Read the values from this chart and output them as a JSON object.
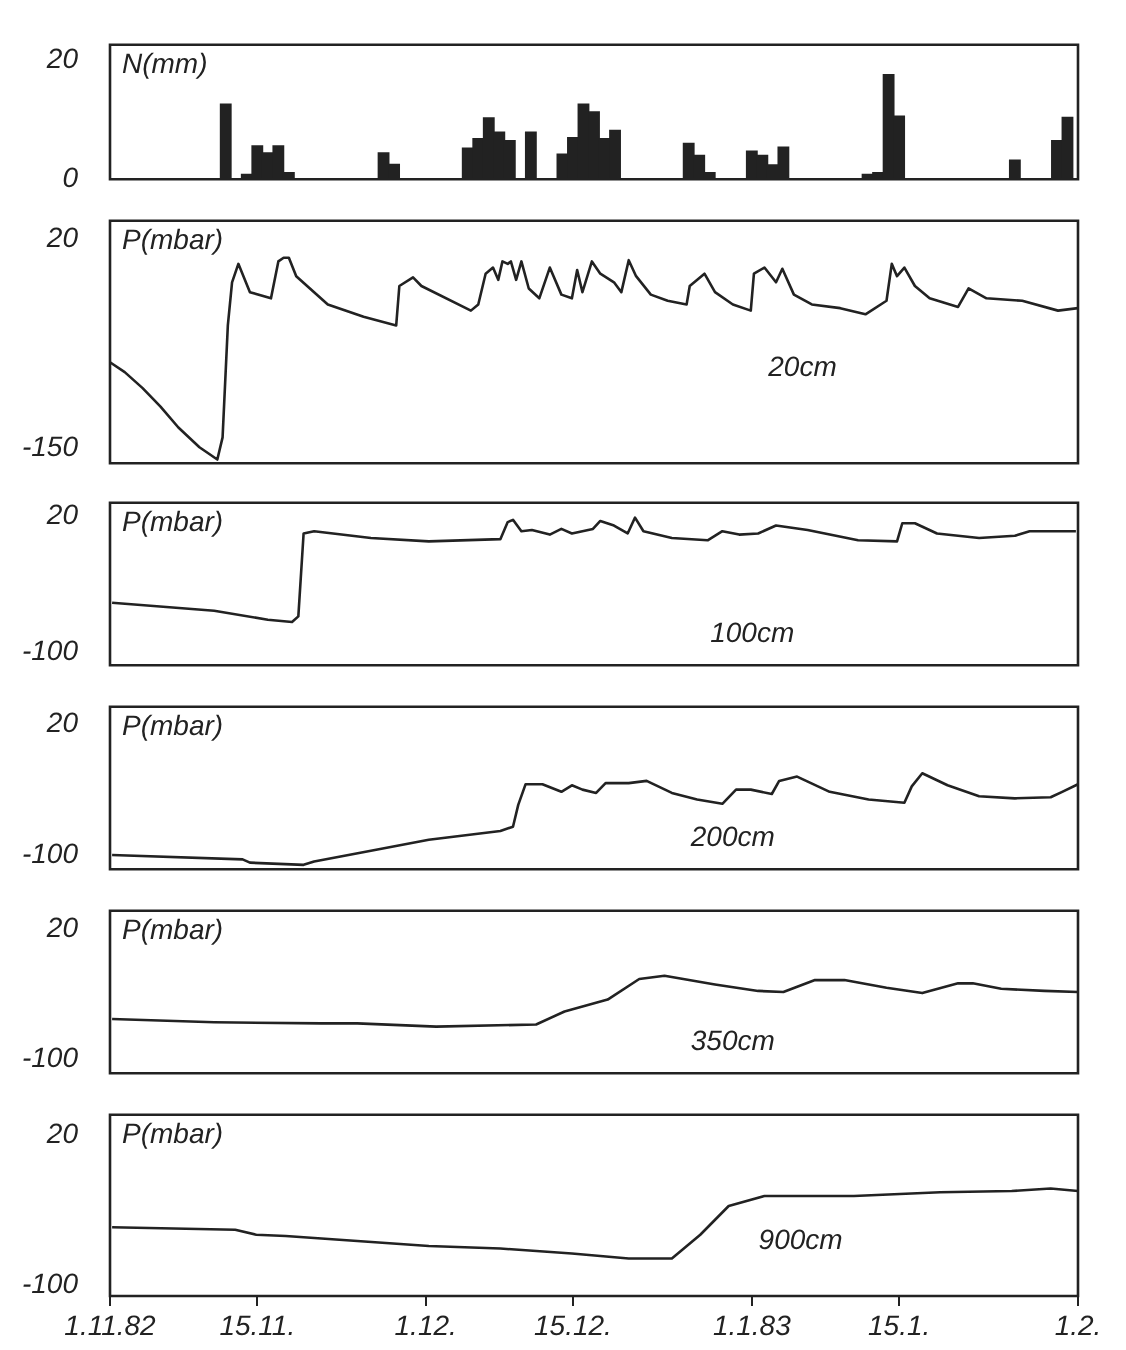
{
  "chart_data": [
    {
      "type": "bar",
      "ylabel": "N(mm)",
      "color": "#222222",
      "xlim": [
        "1982-11-01",
        "1983-02-01"
      ],
      "ylim": [
        0,
        22.6
      ],
      "yticks": [
        0,
        20
      ],
      "tick_labels": "y",
      "x": [
        "1982-11-12",
        "1982-11-14",
        "1982-11-15",
        "1982-11-16",
        "1982-11-17",
        "1982-11-18",
        "1982-11-27",
        "1982-11-28",
        "1982-12-05",
        "1982-12-06",
        "1982-12-07",
        "1982-12-08",
        "1982-12-09",
        "1982-12-11",
        "1982-12-14",
        "1982-12-15",
        "1982-12-16",
        "1982-12-17",
        "1982-12-18",
        "1982-12-19",
        "1982-12-26",
        "1982-12-27",
        "1982-12-28",
        "1983-01-01",
        "1983-01-02",
        "1983-01-03",
        "1983-01-04",
        "1983-01-12",
        "1983-01-13",
        "1983-01-14",
        "1983-01-15",
        "1983-01-26",
        "1983-01-30",
        "1983-01-31"
      ],
      "values": [
        12.6,
        0.8,
        5.6,
        4.4,
        5.6,
        1.1,
        4.4,
        2.5,
        5.2,
        6.8,
        10.3,
        7.9,
        6.5,
        7.9,
        4.2,
        7.0,
        12.6,
        11.3,
        6.8,
        8.2,
        6.0,
        4.0,
        1.1,
        4.7,
        4.0,
        2.4,
        5.4,
        0.8,
        1.1,
        17.6,
        10.6,
        3.2,
        6.5,
        10.4
      ]
    },
    {
      "type": "line",
      "ylabel": "P(mbar)",
      "xlim": [
        "1982-11-01",
        "1983-02-01"
      ],
      "ylim": [
        -162,
        35
      ],
      "yticks": [
        20,
        -150
      ],
      "tick_labels": "y",
      "x": [
        "1982-11-01",
        "1982-11-02T09:36",
        "1982-11-04T02:24",
        "1982-11-05T19:12",
        "1982-11-07T12:00",
        "1982-11-09T12:00",
        "1982-11-11T04:48",
        "1982-11-11T16:48",
        "1982-11-12T04:48",
        "1982-11-12T14:24",
        "1982-11-13T04:48",
        "1982-11-14T07:12",
        "1982-11-16T07:12",
        "1982-11-17",
        "1982-11-17T12:00",
        "1982-11-18",
        "1982-11-18T16:48",
        "1982-11-21T16:48",
        "1982-11-25T02:24",
        "1982-11-28T04:48",
        "1982-11-28T12:00",
        "1982-11-29T19:12",
        "1982-11-30T14:24",
        "1982-12-05T07:12",
        "1982-12-06",
        "1982-12-06T16:48",
        "1982-12-07T09:36",
        "1982-12-07T21:36",
        "1982-12-08T07:12",
        "1982-12-08T19:12",
        "1982-12-09T02:24",
        "1982-12-09T14:24",
        "1982-12-10T02:24",
        "1982-12-10T19:12",
        "1982-12-11T19:12",
        "1982-12-12T19:12",
        "1982-12-13T21:36",
        "1982-12-14T21:36",
        "1982-12-15T09:36",
        "1982-12-15T21:36",
        "1982-12-16T19:12",
        "1982-12-17T14:24",
        "1982-12-18T21:36",
        "1982-12-19T14:24",
        "1982-12-20T07:12",
        "1982-12-21",
        "1982-12-22T09:36",
        "1982-12-24",
        "1982-12-25T19:12",
        "1982-12-26T02:24",
        "1982-12-27T12:00",
        "1982-12-28T12:00",
        "1982-12-30T04:48",
        "1982-12-31T21:36",
        "1983-01-01T04:48",
        "1983-01-02T04:48",
        "1983-01-03T07:12",
        "1983-01-03T21:36",
        "1983-01-05",
        "1983-01-06T16:48",
        "1983-01-09T09:36",
        "1983-01-11T19:12",
        "1983-01-13T19:12",
        "1983-01-14T07:12",
        "1983-01-14T19:12",
        "1983-01-15T12:00",
        "1983-01-16T12:00",
        "1983-01-17T21:36",
        "1983-01-20T14:24",
        "1983-01-21T14:24",
        "1983-01-23T07:12",
        "1983-01-26T16:48",
        "1983-01-30T02:24",
        "1983-02-01"
      ],
      "series": [
        {
          "name": "20cm",
          "color": "#222222",
          "values": [
            -80,
            -88,
            -101,
            -116,
            -133,
            -149,
            -159,
            -141,
            -50,
            -15,
            0,
            -23,
            -28,
            2,
            5,
            5,
            -10,
            -33,
            -43,
            -50,
            -18,
            -11,
            -18,
            -38,
            -33,
            -8,
            -3,
            -13,
            2,
            0,
            2,
            -13,
            2,
            -20,
            -28,
            -3,
            -25,
            -28,
            -5,
            -23,
            2,
            -8,
            -15,
            -23,
            3,
            -10,
            -25,
            -30,
            -33,
            -18,
            -8,
            -23,
            -33,
            -38,
            -8,
            -3,
            -15,
            -4,
            -25,
            -33,
            -36,
            -41,
            -30,
            0,
            -10,
            -3,
            -18,
            -28,
            -35,
            -20,
            -28,
            -30,
            -38,
            -36
          ]
        }
      ]
    },
    {
      "type": "line",
      "ylabel": "P(mbar)",
      "xlim": [
        "1982-11-01",
        "1983-02-01"
      ],
      "ylim": [
        -111,
        32
      ],
      "yticks": [
        20,
        -100
      ],
      "tick_labels": "y",
      "x": [
        "1982-11-01T04:48",
        "1982-11-10T21:36",
        "1982-11-16",
        "1982-11-18T07:12",
        "1982-11-18T21:36",
        "1982-11-19T09:36",
        "1982-11-20T09:36",
        "1982-11-25T19:12",
        "1982-12-01T07:12",
        "1982-12-08T02:24",
        "1982-12-08T19:12",
        "1982-12-09T07:12",
        "1982-12-10T02:24",
        "1982-12-11T02:24",
        "1982-12-12T19:12",
        "1982-12-13T21:36",
        "1982-12-14T21:36",
        "1982-12-16T21:36",
        "1982-12-17T14:24",
        "1982-12-18T21:36",
        "1982-12-20T04:48",
        "1982-12-20T21:36",
        "1982-12-21T16:48",
        "1982-12-24T09:36",
        "1982-12-27T19:12",
        "1982-12-29T04:48",
        "1982-12-30T19:12",
        "1983-01-01T14:24",
        "1983-01-03T07:12",
        "1983-01-06T07:12",
        "1983-01-11T02:24",
        "1983-01-14T19:12",
        "1983-01-15T07:12",
        "1983-01-16T12:00",
        "1983-01-18T14:24",
        "1983-01-22T14:24",
        "1983-01-26",
        "1983-01-27T09:36",
        "1983-01-31T19:12"
      ],
      "series": [
        {
          "name": "100cm",
          "color": "#222222",
          "values": [
            -56,
            -63,
            -71,
            -73,
            -68,
            5,
            7,
            1,
            -2,
            0,
            15,
            17,
            7,
            8,
            4,
            9,
            5,
            9,
            16,
            12,
            5,
            19,
            7,
            1,
            -1,
            7,
            4,
            5,
            12,
            8,
            -1,
            -2,
            14,
            14,
            5,
            1,
            3,
            7,
            7
          ]
        }
      ]
    },
    {
      "type": "line",
      "ylabel": "P(mbar)",
      "xlim": [
        "1982-11-01",
        "1983-02-01"
      ],
      "ylim": [
        -113,
        36
      ],
      "yticks": [
        20,
        -100
      ],
      "tick_labels": "y",
      "x": [
        "1982-11-01T04:48",
        "1982-11-13T14:24",
        "1982-11-14T07:12",
        "1982-11-19T09:36",
        "1982-11-20T09:36",
        "1982-11-25T19:12",
        "1982-12-01T07:12",
        "1982-12-08T02:24",
        "1982-12-09T07:12",
        "1982-12-09T19:12",
        "1982-12-10T12:00",
        "1982-12-12T02:24",
        "1982-12-13T21:36",
        "1982-12-14T21:36",
        "1982-12-15T21:36",
        "1982-12-17T04:48",
        "1982-12-18T02:24",
        "1982-12-20T07:12",
        "1982-12-22",
        "1982-12-24T09:36",
        "1982-12-26T19:12",
        "1982-12-29T04:48",
        "1982-12-30T12:00",
        "1982-12-31T21:36",
        "1983-01-02T21:36",
        "1983-01-03T14:24",
        "1983-01-05T07:12",
        "1983-01-08T09:36",
        "1983-01-12T02:24",
        "1983-01-15T12:00",
        "1983-01-16T04:48",
        "1983-01-17T04:48",
        "1983-01-19T14:24",
        "1983-01-22T14:24",
        "1983-01-26",
        "1983-01-29T09:36",
        "1983-01-30T12:00",
        "1983-02-01"
      ],
      "series": [
        {
          "name": "200cm",
          "color": "#222222",
          "values": [
            -100,
            -104,
            -107,
            -109,
            -106,
            -96,
            -86,
            -78,
            -74,
            -54,
            -35,
            -35,
            -42,
            -36,
            -40,
            -43,
            -34,
            -34,
            -32,
            -43,
            -49,
            -53,
            -40,
            -40,
            -44,
            -32,
            -28,
            -42,
            -49,
            -52,
            -37,
            -25,
            -36,
            -46,
            -48,
            -47,
            -42,
            -35
          ]
        }
      ]
    },
    {
      "type": "line",
      "ylabel": "P(mbar)",
      "xlim": [
        "1982-11-01",
        "1983-02-01"
      ],
      "ylim": [
        -113,
        37
      ],
      "yticks": [
        20,
        -100
      ],
      "tick_labels": "y",
      "x": [
        "1982-11-01T04:48",
        "1982-11-10T21:36",
        "1982-11-21T02:24",
        "1982-11-24T12:00",
        "1982-12-02",
        "1982-12-11T12:00",
        "1982-12-14T04:48",
        "1982-12-18T07:12",
        "1982-12-21T07:12",
        "1982-12-23T16:48",
        "1982-12-28T12:00",
        "1983-01-01T14:24",
        "1983-01-04",
        "1983-01-07",
        "1983-01-09T19:12",
        "1983-01-13T19:12",
        "1983-01-17T04:48",
        "1983-01-20T14:24",
        "1983-01-22",
        "1983-01-24T16:48",
        "1983-01-28T19:12",
        "1983-02-01"
      ],
      "series": [
        {
          "name": "350cm",
          "color": "#222222",
          "values": [
            -63,
            -66,
            -67,
            -67,
            -70,
            -68,
            -56,
            -45,
            -26,
            -23,
            -31,
            -37,
            -38,
            -27,
            -27,
            -34,
            -39,
            -30,
            -30,
            -35,
            -37,
            -38
          ]
        }
      ]
    },
    {
      "type": "line",
      "ylabel": "P(mbar)",
      "xlim": [
        "1982-11-01",
        "1983-02-01"
      ],
      "ylim": [
        -109,
        36
      ],
      "yticks": [
        20,
        -100
      ],
      "xticks": [
        {
          "value": "1982-11-01",
          "label": "1.11.82"
        },
        {
          "value": "1982-11-15",
          "label": "15.11."
        },
        {
          "value": "1982-12-01",
          "label": "1.12."
        },
        {
          "value": "1982-12-15",
          "label": "15.12."
        },
        {
          "value": "1983-01-01",
          "label": "1.1.83"
        },
        {
          "value": "1983-01-15",
          "label": "15.1."
        },
        {
          "value": "1983-02-01",
          "label": "1.2."
        }
      ],
      "x": [
        "1982-11-01T04:48",
        "1982-11-12T21:36",
        "1982-11-14T21:36",
        "1982-11-17T16:48",
        "1982-11-24T12:00",
        "1982-12-01T07:12",
        "1982-12-08T02:24",
        "1982-12-14T21:36",
        "1982-12-20T07:12",
        "1982-12-24T09:36",
        "1982-12-27T02:24",
        "1982-12-29T19:12",
        "1983-01-02T04:48",
        "1983-01-10T16:48",
        "1983-01-18T21:36",
        "1983-01-25T16:48",
        "1983-01-29T09:36",
        "1983-02-01"
      ],
      "series": [
        {
          "name": "900cm",
          "color": "#222222",
          "values": [
            -54,
            -56,
            -60,
            -61,
            -65,
            -69,
            -71,
            -75,
            -79,
            -79,
            -60,
            -37,
            -29,
            -29,
            -26,
            -25,
            -23,
            -25
          ]
        }
      ]
    }
  ]
}
